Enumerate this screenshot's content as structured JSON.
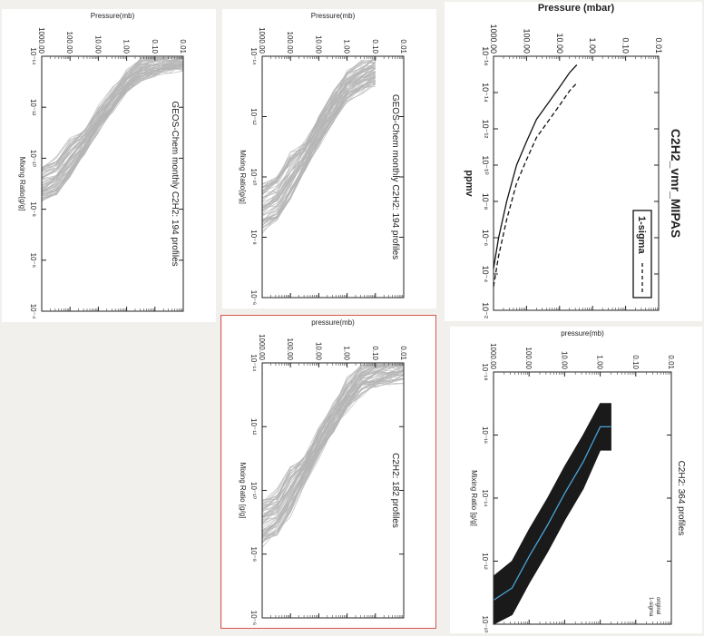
{
  "chart_data": [
    {
      "id": "geos-194-left",
      "type": "line",
      "title": "GEOS-Chem monthly C2H2: 194 profiles",
      "xlabel": "Mixing Ratio[g/g]",
      "ylabel": "Pressure(mb)",
      "x_scale": "log",
      "y_scale": "log",
      "xlim": [
        1e-14,
        0.0001
      ],
      "ylim": [
        1000,
        0.01
      ],
      "x_ticks": [
        "10⁻¹⁴",
        "10⁻¹²",
        "10⁻¹⁰",
        "10⁻⁸",
        "10⁻⁶",
        "10⁻⁴"
      ],
      "y_ticks": [
        "1000.00",
        "100.00",
        "10.00",
        "1.00",
        "0.10",
        "0.01"
      ],
      "series_color": "#b5b5b5",
      "profile_count": 194,
      "envelope_center": {
        "pressure": [
          1000,
          300,
          100,
          30,
          10,
          3,
          1,
          0.3,
          0.1,
          0.03,
          0.01
        ],
        "mixing_ratio": [
          1e-09,
          5e-10,
          1e-10,
          2e-11,
          3e-12,
          5e-13,
          1e-13,
          3e-14,
          2e-14,
          1.5e-14,
          1.2e-14
        ]
      }
    },
    {
      "id": "geos-194-mid",
      "type": "line",
      "title": "GEOS-Chem monthly C2H2: 194 profiles",
      "xlabel": "Mixing Ratio[g/g]",
      "ylabel": "Pressure(mb)",
      "x_scale": "log",
      "y_scale": "log",
      "xlim": [
        1e-14,
        1e-06
      ],
      "ylim": [
        1000,
        0.01
      ],
      "x_ticks": [
        "10⁻¹⁴",
        "10⁻¹²",
        "10⁻¹⁰",
        "10⁻⁸",
        "10⁻⁶"
      ],
      "y_ticks": [
        "1000.00",
        "100.00",
        "10.00",
        "1.00",
        "0.10",
        "0.01"
      ],
      "series_color": "#b5b5b5",
      "profile_count": 194,
      "envelope_center": {
        "pressure": [
          1000,
          300,
          100,
          30,
          10,
          3,
          1,
          0.3,
          0.1
        ],
        "mixing_ratio": [
          1e-09,
          5e-10,
          1e-10,
          2e-11,
          3e-12,
          5e-13,
          1e-13,
          5e-14,
          3e-14
        ]
      }
    },
    {
      "id": "c2h2-182",
      "type": "line",
      "title": "C2H2: 182 profiles",
      "xlabel": "Mixing Ratio [g/g]",
      "ylabel": "pressure(mb)",
      "x_scale": "log",
      "y_scale": "log",
      "xlim": [
        1e-14,
        1e-06
      ],
      "ylim": [
        1000,
        0.01
      ],
      "x_ticks": [
        "10⁻¹⁴",
        "10⁻¹²",
        "10⁻¹⁰",
        "10⁻⁸",
        "10⁻⁶"
      ],
      "y_ticks": [
        "1000.00",
        "100.00",
        "10.00",
        "1.00",
        "0.10",
        "0.01"
      ],
      "series_color": "#b5b5b5",
      "profile_count": 182,
      "envelope_center": {
        "pressure": [
          1000,
          300,
          100,
          30,
          10,
          3,
          1,
          0.3,
          0.1,
          0.03,
          0.01
        ],
        "mixing_ratio": [
          1e-09,
          5e-10,
          1e-10,
          2e-11,
          3e-12,
          5e-13,
          1e-13,
          3e-14,
          2e-14,
          1.5e-14,
          1.2e-14
        ]
      }
    },
    {
      "id": "mipas",
      "type": "line",
      "title": "C2H2_vmr_MIPAS",
      "xlabel": "ppmv",
      "ylabel": "Pressure (mbar)",
      "x_scale": "log",
      "y_scale": "log",
      "xlim": [
        1e-16,
        0.01
      ],
      "ylim": [
        1000,
        0.01
      ],
      "x_ticks": [
        "10⁻¹⁶",
        "10⁻¹⁴",
        "10⁻¹²",
        "10⁻¹⁰",
        "10⁻⁸",
        "10⁻⁶",
        "10⁻⁴",
        "10⁻²"
      ],
      "y_ticks": [
        "1000.00",
        "100.00",
        "10.00",
        "1.00",
        "0.10",
        "0.01"
      ],
      "legend": {
        "entries": [
          "1-sigma"
        ],
        "position": "top-left"
      },
      "series": [
        {
          "name": "",
          "style": "solid",
          "pressure": [
            1000,
            700,
            400,
            200,
            100,
            50,
            20,
            10,
            5,
            3
          ],
          "x": [
            5e-05,
            1e-06,
            1e-08,
            1e-10,
            5e-12,
            3e-13,
            3e-14,
            5e-15,
            8e-16,
            3e-16
          ]
        },
        {
          "name": "1-sigma",
          "style": "dashed",
          "pressure": [
            1000,
            700,
            400,
            200,
            100,
            50,
            20,
            10,
            5,
            3
          ],
          "x": [
            0.0005,
            1e-05,
            1e-07,
            1e-09,
            5e-11,
            3e-12,
            3e-13,
            5e-14,
            8e-15,
            3e-15
          ]
        }
      ]
    },
    {
      "id": "c2h2-364",
      "type": "area",
      "title": "C2H2: 364 profiles",
      "xlabel": "Mixing Ratio [g/g]",
      "ylabel": "pressure(mb)",
      "x_scale": "log",
      "y_scale": "log",
      "xlim": [
        1e-18,
        1e-10
      ],
      "ylim": [
        1000,
        0.01
      ],
      "x_ticks": [
        "10⁻¹⁸",
        "10⁻¹⁶",
        "10⁻¹⁴",
        "10⁻¹²",
        "10⁻¹⁰"
      ],
      "y_ticks": [
        "1000.00",
        "100.00",
        "10.00",
        "1.00",
        "0.10",
        "0.01"
      ],
      "legend": {
        "entries": [
          "original",
          "1-sigma"
        ],
        "position": "top-right"
      },
      "series_colors": {
        "band": "#1a1a1a",
        "mean": "#4aa3d9"
      },
      "profile_count": 364,
      "band": {
        "pressure": [
          1000,
          300,
          100,
          30,
          10,
          3,
          1,
          0.5
        ],
        "lower": [
          3e-12,
          1e-12,
          1e-13,
          1e-14,
          1e-15,
          1e-16,
          1e-17,
          1e-17
        ],
        "upper": [
          1e-10,
          5e-11,
          5e-12,
          5e-13,
          5e-14,
          5e-15,
          3e-16,
          3e-16
        ]
      }
    }
  ]
}
